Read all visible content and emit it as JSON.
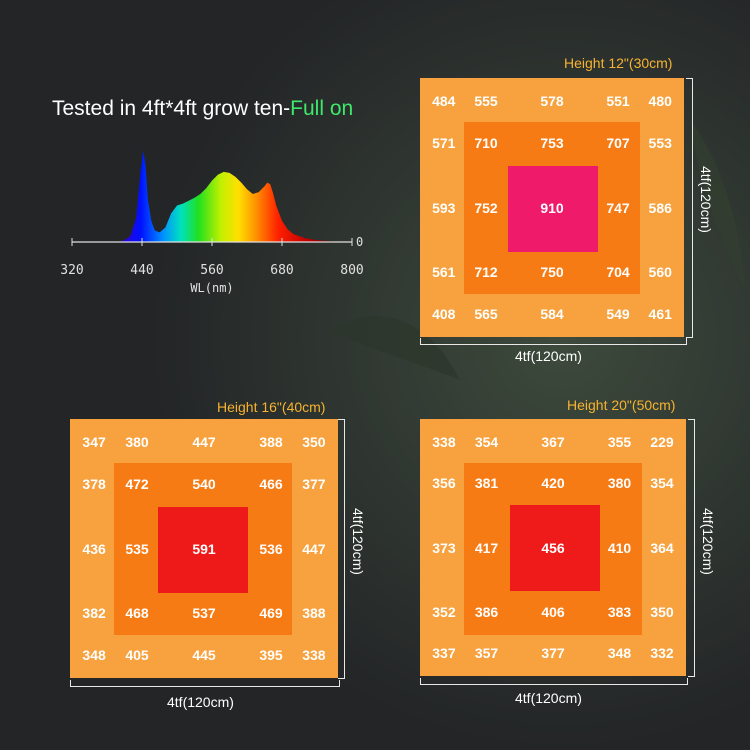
{
  "headline": {
    "main": "Tested in 4ft*4ft grow ten-",
    "accent": "Full on"
  },
  "spectrum": {
    "type": "line",
    "xlabel": "WL(nm)",
    "x_ticks": [
      320,
      440,
      560,
      680,
      800
    ],
    "xlim": [
      320,
      800
    ],
    "baseline_label": "0",
    "x": [
      400,
      410,
      420,
      430,
      438,
      442,
      446,
      450,
      456,
      462,
      470,
      480,
      490,
      500,
      510,
      520,
      530,
      540,
      550,
      560,
      570,
      580,
      590,
      600,
      610,
      620,
      630,
      640,
      650,
      655,
      660,
      665,
      670,
      680,
      690,
      700,
      720,
      740,
      760,
      780
    ],
    "y": [
      0.0,
      0.02,
      0.06,
      0.25,
      0.75,
      0.95,
      0.8,
      0.45,
      0.22,
      0.12,
      0.1,
      0.15,
      0.3,
      0.38,
      0.4,
      0.43,
      0.46,
      0.5,
      0.56,
      0.64,
      0.7,
      0.73,
      0.72,
      0.68,
      0.62,
      0.55,
      0.5,
      0.52,
      0.58,
      0.62,
      0.6,
      0.5,
      0.38,
      0.22,
      0.13,
      0.08,
      0.04,
      0.02,
      0.01,
      0.0
    ]
  },
  "chart_data": [
    {
      "type": "heatmap",
      "title": "Height 12\"(30cm)",
      "xlabel": "4tf(120cm)",
      "ylabel": "4tf(120cm)",
      "rows": [
        [
          484,
          555,
          578,
          551,
          480
        ],
        [
          571,
          710,
          753,
          707,
          553
        ],
        [
          593,
          752,
          910,
          747,
          586
        ],
        [
          561,
          712,
          750,
          704,
          560
        ],
        [
          408,
          565,
          584,
          549,
          461
        ]
      ]
    },
    {
      "type": "heatmap",
      "title": "Height 16\"(40cm)",
      "xlabel": "4tf(120cm)",
      "ylabel": "4tf(120cm)",
      "rows": [
        [
          347,
          380,
          447,
          388,
          350
        ],
        [
          378,
          472,
          540,
          466,
          377
        ],
        [
          436,
          535,
          591,
          536,
          447
        ],
        [
          382,
          468,
          537,
          469,
          388
        ],
        [
          348,
          405,
          445,
          395,
          338
        ]
      ]
    },
    {
      "type": "heatmap",
      "title": "Height 20\"(50cm)",
      "xlabel": "4tf(120cm)",
      "ylabel": "4tf(120cm)",
      "rows": [
        [
          338,
          354,
          367,
          355,
          229
        ],
        [
          356,
          381,
          420,
          380,
          354
        ],
        [
          373,
          417,
          456,
          410,
          364
        ],
        [
          352,
          386,
          406,
          383,
          350
        ],
        [
          337,
          357,
          377,
          348,
          332
        ]
      ]
    }
  ],
  "colors": {
    "outer": "#f7a23e",
    "middle": "#f77b14",
    "core_panel1": "#ef1a6a",
    "core_panel2": "#ee1a1a",
    "core_panel3": "#ef1a1a"
  }
}
